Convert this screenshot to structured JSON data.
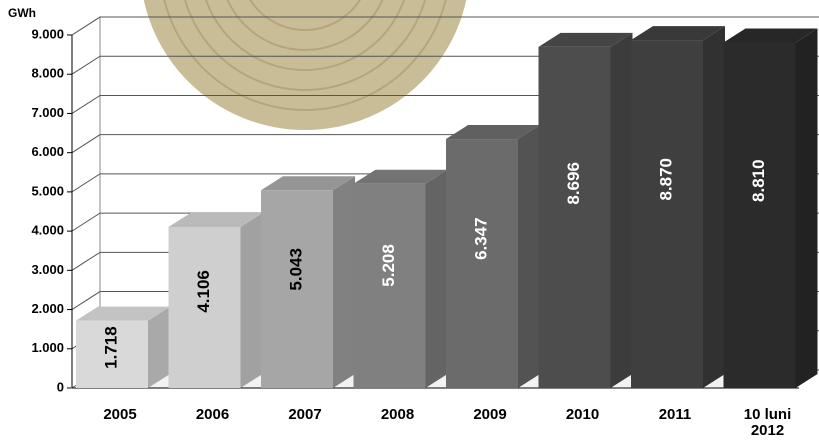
{
  "chart_data": {
    "type": "bar3d",
    "y_label": "GWh",
    "categories": [
      "2005",
      "2006",
      "2007",
      "2008",
      "2009",
      "2010",
      "2011",
      "10 luni 2012"
    ],
    "values": [
      1718,
      4106,
      5043,
      5208,
      6347,
      8696,
      8870,
      8810
    ],
    "value_labels": [
      "1.718",
      "4.106",
      "5.043",
      "5.208",
      "6.347",
      "8.696",
      "8.870",
      "8.810"
    ],
    "colors": [
      "#d9d9d9",
      "#cfcfcf",
      "#a6a6a6",
      "#808080",
      "#6b6b6b",
      "#4d4d4d",
      "#3f3f3f",
      "#2b2b2b"
    ],
    "label_colors": [
      "#000000",
      "#000000",
      "#000000",
      "#ffffff",
      "#ffffff",
      "#ffffff",
      "#ffffff",
      "#ffffff"
    ],
    "ylim": [
      0,
      9000
    ],
    "yticks": [
      {
        "value": 0,
        "label": "0"
      },
      {
        "value": 1000,
        "label": "1.000"
      },
      {
        "value": 2000,
        "label": "2.000"
      },
      {
        "value": 3000,
        "label": "3.000"
      },
      {
        "value": 4000,
        "label": "4.000"
      },
      {
        "value": 5000,
        "label": "5.000"
      },
      {
        "value": 6000,
        "label": "6.000"
      },
      {
        "value": 7000,
        "label": "7.000"
      },
      {
        "value": 8000,
        "label": "8.000"
      },
      {
        "value": 9000,
        "label": "9.000"
      }
    ],
    "grid": true
  }
}
